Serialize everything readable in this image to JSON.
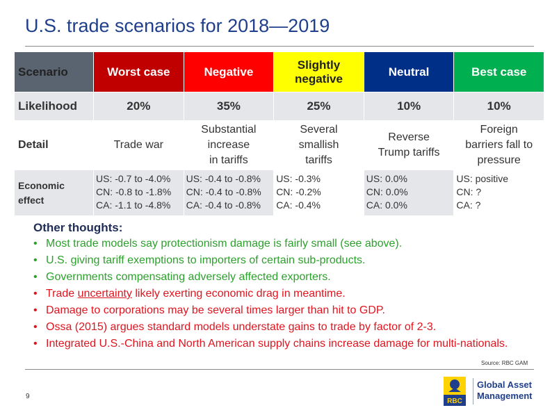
{
  "title": "U.S. trade scenarios for 2018—2019",
  "table": {
    "row_labels": {
      "scenario": "Scenario",
      "likelihood": "Likelihood",
      "detail": "Detail",
      "economic": "Economic effect"
    },
    "scenarios": [
      {
        "name": "Worst case",
        "color": "#c00000",
        "text_color": "#ffffff",
        "likelihood": "20%",
        "detail": [
          "Trade war"
        ],
        "effects": [
          "US: -0.7 to -4.0%",
          "CN: -0.8 to -1.8%",
          "CA: -1.1 to -4.8%"
        ]
      },
      {
        "name": "Negative",
        "color": "#ff0000",
        "text_color": "#ffffff",
        "likelihood": "35%",
        "detail": [
          "Substantial",
          "increase",
          "in tariffs"
        ],
        "effects": [
          "US: -0.4 to -0.8%",
          "CN: -0.4 to -0.8%",
          "CA: -0.4 to -0.8%"
        ]
      },
      {
        "name": "Slightly negative",
        "color": "#ffff00",
        "text_color": "#222222",
        "likelihood": "25%",
        "detail": [
          "Several",
          "smallish",
          "tariffs"
        ],
        "effects": [
          "US: -0.3%",
          "CN: -0.2%",
          "CA: -0.4%"
        ]
      },
      {
        "name": "Neutral",
        "color": "#002f87",
        "text_color": "#ffffff",
        "likelihood": "10%",
        "detail": [
          "Reverse",
          "Trump tariffs"
        ],
        "effects": [
          "US: 0.0%",
          "CN: 0.0%",
          "CA: 0.0%"
        ]
      },
      {
        "name": "Best case",
        "color": "#00b050",
        "text_color": "#ffffff",
        "likelihood": "10%",
        "detail": [
          "Foreign",
          "barriers fall to",
          "pressure"
        ],
        "effects": [
          "US: positive",
          "CN: ?",
          "CA: ?"
        ]
      }
    ]
  },
  "thoughts": {
    "heading": "Other thoughts:",
    "bullet": "•",
    "items": [
      {
        "color": "green",
        "text": "Most trade models say protectionism damage is fairly small (see above)."
      },
      {
        "color": "green",
        "text": "U.S. giving tariff exemptions to importers of certain sub-products."
      },
      {
        "color": "green",
        "text": "Governments compensating adversely affected exporters."
      },
      {
        "color": "red",
        "pre": "Trade ",
        "underlined": "uncertainty",
        "post": " likely exerting economic drag in meantime."
      },
      {
        "color": "red",
        "text": "Damage to corporations may be several times larger than hit to GDP."
      },
      {
        "color": "red",
        "text": "Ossa (2015) argues standard models understate gains to trade by factor of 2-3."
      },
      {
        "color": "red",
        "text": "Integrated U.S.-China and North American supply chains increase damage for multi-nationals."
      }
    ]
  },
  "colors": {
    "green": "#2ca02c",
    "red": "#e0141e",
    "title": "#1f3f8c",
    "row_header": "#5a6470"
  },
  "source": "Source: RBC GAM",
  "page_number": "9",
  "logo": {
    "mark": "RBC",
    "line1": "Global Asset",
    "line2": "Management",
    "icon": "rbc-lion-shield-icon"
  }
}
